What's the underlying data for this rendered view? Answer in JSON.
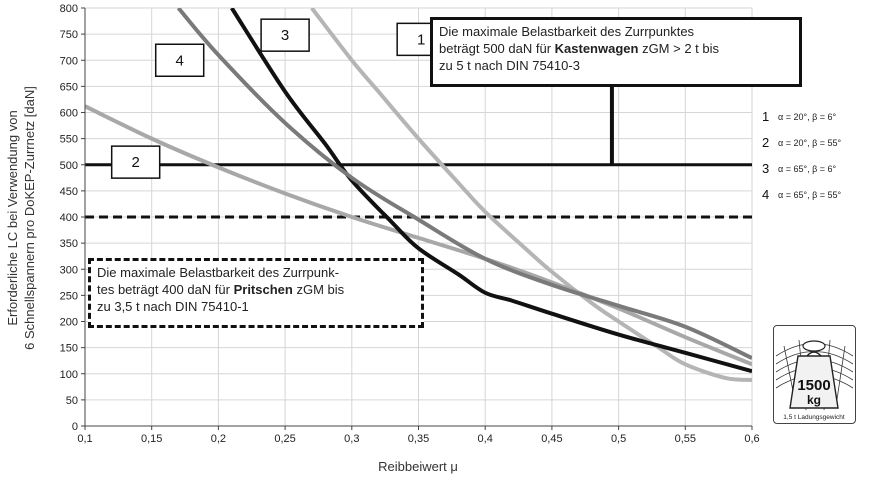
{
  "chart_data": {
    "type": "line",
    "xlabel": "Reibbeiwert μ",
    "ylabel_line1": "Erforderliche LC bei Verwendung von",
    "ylabel_line2": "6 Schnellspannern pro DoKEP-Zurrnetz [daN]",
    "xlim": [
      0.1,
      0.6
    ],
    "ylim": [
      0,
      800
    ],
    "x_ticks": [
      "0,1",
      "0,15",
      "0,2",
      "0,25",
      "0,3",
      "0,35",
      "0,4",
      "0,45",
      "0,5",
      "0,55",
      "0,6"
    ],
    "y_ticks": [
      "0",
      "50",
      "100",
      "150",
      "200",
      "250",
      "300",
      "350",
      "400",
      "450",
      "500",
      "550",
      "600",
      "650",
      "700",
      "750",
      "800"
    ],
    "grid": true,
    "series": [
      {
        "name": "1",
        "color": "#b5b5b5",
        "x": [
          0.27,
          0.3,
          0.32,
          0.35,
          0.38,
          0.4,
          0.43,
          0.45,
          0.48,
          0.5,
          0.53,
          0.55,
          0.58,
          0.6
        ],
        "y": [
          800,
          700,
          640,
          550,
          465,
          410,
          340,
          295,
          235,
          200,
          150,
          118,
          92,
          88
        ]
      },
      {
        "name": "2",
        "color": "#a8a8a8",
        "x": [
          0.1,
          0.15,
          0.2,
          0.25,
          0.3,
          0.35,
          0.4,
          0.45,
          0.5,
          0.55,
          0.6
        ],
        "y": [
          612,
          550,
          495,
          445,
          400,
          360,
          320,
          275,
          225,
          170,
          118
        ]
      },
      {
        "name": "3",
        "color": "#111111",
        "x": [
          0.21,
          0.25,
          0.28,
          0.3,
          0.33,
          0.35,
          0.38,
          0.4,
          0.42,
          0.45,
          0.5,
          0.55,
          0.6
        ],
        "y": [
          800,
          640,
          540,
          470,
          390,
          340,
          290,
          255,
          240,
          215,
          175,
          140,
          105
        ]
      },
      {
        "name": "4",
        "color": "#7a7a7a",
        "x": [
          0.17,
          0.2,
          0.25,
          0.3,
          0.35,
          0.4,
          0.45,
          0.5,
          0.55,
          0.6
        ],
        "y": [
          800,
          710,
          580,
          475,
          395,
          320,
          270,
          230,
          190,
          130
        ]
      }
    ],
    "reference_lines": [
      {
        "value": 500,
        "style": "solid",
        "color": "#111111"
      },
      {
        "value": 400,
        "style": "dashed",
        "color": "#111111"
      }
    ],
    "curve_labels": [
      {
        "text": "1",
        "x": 0.352,
        "y": 740
      },
      {
        "text": "2",
        "x": 0.138,
        "y": 505
      },
      {
        "text": "3",
        "x": 0.25,
        "y": 748
      },
      {
        "text": "4",
        "x": 0.171,
        "y": 700
      }
    ],
    "legend": {
      "placement": "right",
      "entries": [
        {
          "num": "1",
          "text": "α = 20°, β = 6°"
        },
        {
          "num": "2",
          "text": "α = 20°, β = 55°"
        },
        {
          "num": "3",
          "text": "α = 65°, β = 6°"
        },
        {
          "num": "4",
          "text": "α = 65°, β = 55°"
        }
      ]
    },
    "annotations": {
      "solid_box": {
        "line1": "Die maximale Belastbarkeit des Zurrpunktes",
        "line2_a": "beträgt 500 daN für ",
        "line2_bold": "Kastenwagen",
        "line2_b": " zGM > 2 t bis",
        "line3": "zu 5 t nach DIN 75410-3",
        "pointer_x": 0.495
      },
      "dashed_box": {
        "line1": "Die maximale Belastbarkeit des Zurrpunk-",
        "line2_a": "tes beträgt 400 daN für ",
        "line2_bold": "Pritschen",
        "line2_b": " zGM bis",
        "line3": "zu 3,5 t nach DIN 75410-1"
      }
    },
    "weight_icon": {
      "value": "1500",
      "unit": "kg",
      "caption": "1,5 t Ladungsgewicht"
    }
  }
}
